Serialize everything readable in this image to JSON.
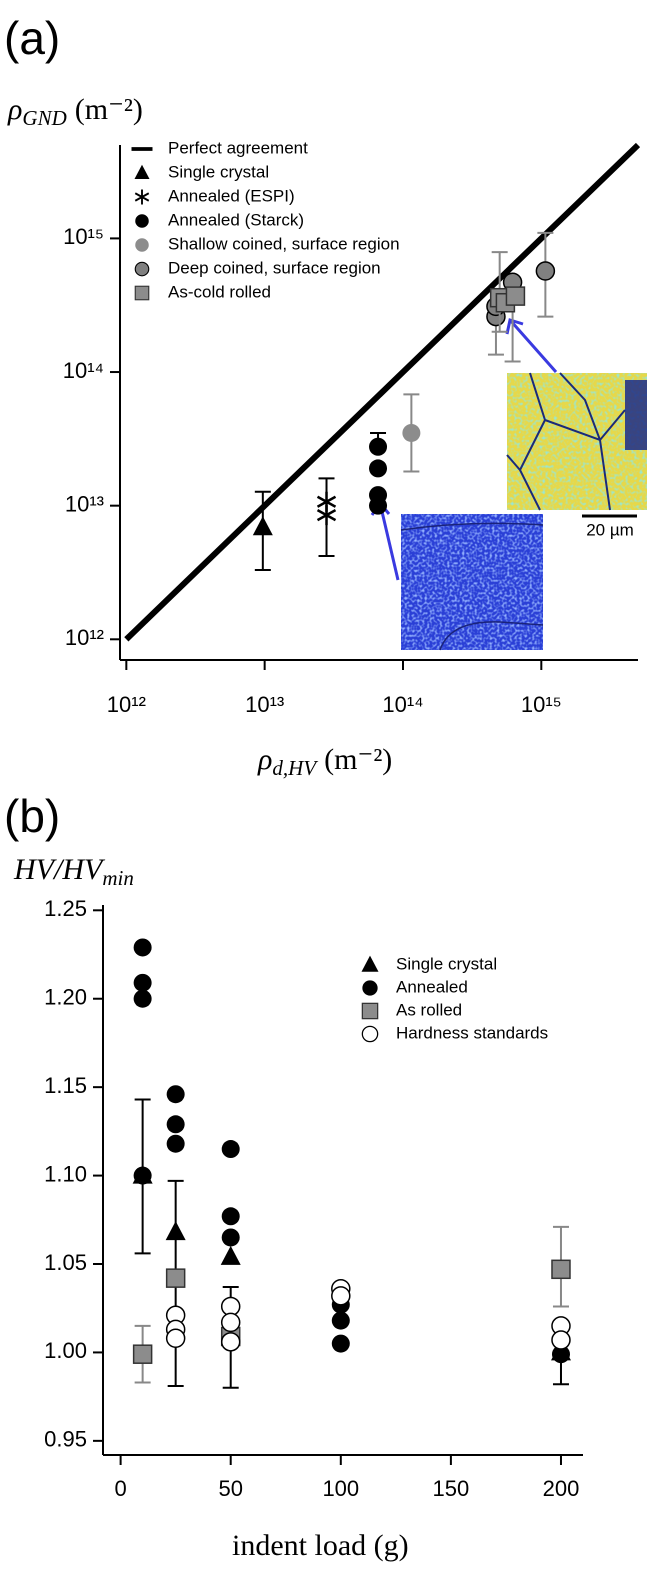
{
  "chart_data": [
    {
      "type": "scatter",
      "panel": "(a)",
      "xscale": "log",
      "yscale": "log",
      "y_label": {
        "symbol": "ρ",
        "sub": "GND",
        "unit": "(m⁻²)"
      },
      "x_label": {
        "symbol": "ρ",
        "sub": "d,HV",
        "unit": "(m⁻²)"
      },
      "xlim": [
        900000000000.0,
        5000000000000000.0
      ],
      "ylim": [
        700000000000.0,
        5000000000000000.0
      ],
      "xticks": [
        {
          "value": 1000000000000.0,
          "label": "10¹²"
        },
        {
          "value": 10000000000000.0,
          "label": "10¹³"
        },
        {
          "value": 100000000000000.0,
          "label": "10¹⁴"
        },
        {
          "value": 1000000000000000.0,
          "label": "10¹⁵"
        }
      ],
      "yticks": [
        {
          "value": 1000000000000.0,
          "label": "10¹²"
        },
        {
          "value": 10000000000000.0,
          "label": "10¹³"
        },
        {
          "value": 100000000000000.0,
          "label": "10¹⁴"
        },
        {
          "value": 1000000000000000.0,
          "label": "10¹⁵"
        }
      ],
      "annotation": "20 µm",
      "series": [
        {
          "name": "Perfect agreement",
          "marker": "line",
          "color": "#000000",
          "x": [
            1000000000000.0,
            5000000000000000.0
          ],
          "values": [
            1000000000000.0,
            5000000000000000.0
          ]
        },
        {
          "name": "Single crystal",
          "marker": "triangle",
          "color": "#000000",
          "x": [
            9700000000000.0
          ],
          "values": [
            6900000000000.0
          ],
          "ylow": [
            3300000000000.0
          ],
          "yhigh": [
            12700000000000.0
          ]
        },
        {
          "name": "Annealed (ESPI)",
          "marker": "asterisk",
          "color": "#000000",
          "x": [
            28000000000000.0,
            28000000000000.0
          ],
          "values": [
            10700000000000.0,
            8500000000000.0
          ],
          "ylow": [
            4200000000000.0,
            null
          ],
          "yhigh": [
            16000000000000.0,
            null
          ]
        },
        {
          "name": "Annealed (Starck)",
          "marker": "circle",
          "color": "#000000",
          "x": [
            66000000000000.0,
            66000000000000.0,
            66000000000000.0,
            66000000000000.0
          ],
          "values": [
            27600000000000.0,
            19000000000000.0,
            12000000000000.0,
            10000000000000.0
          ],
          "ylow": [
            null,
            null,
            null,
            null
          ],
          "yhigh": [
            35000000000000.0,
            null,
            null,
            null
          ]
        },
        {
          "name": "Shallow coined, surface region",
          "marker": "circle",
          "color": "#8c8c8c",
          "x": [
            115000000000000.0
          ],
          "values": [
            35000000000000.0
          ],
          "ylow": [
            18000000000000.0
          ],
          "yhigh": [
            68000000000000.0
          ]
        },
        {
          "name": "Deep coined, surface region",
          "marker": "circle-edge",
          "color": "#808080",
          "x": [
            470000000000000.0,
            470000000000000.0,
            620000000000000.0,
            1070000000000000.0
          ],
          "values": [
            260000000000000.0,
            310000000000000.0,
            470000000000000.0,
            570000000000000.0
          ],
          "ylow": [
            135000000000000.0,
            null,
            120000000000000.0,
            260000000000000.0
          ],
          "yhigh": [
            null,
            null,
            null,
            1100000000000000.0
          ]
        },
        {
          "name": "As-cold rolled",
          "marker": "square",
          "color": "#8c8c8c",
          "x": [
            500000000000000.0,
            550000000000000.0,
            650000000000000.0
          ],
          "values": [
            360000000000000.0,
            330000000000000.0,
            370000000000000.0
          ],
          "ylow": [
            200000000000000.0,
            null,
            null
          ],
          "yhigh": [
            790000000000000.0,
            null,
            null
          ]
        }
      ]
    },
    {
      "type": "scatter",
      "panel": "(b)",
      "y_label": {
        "symbol": "HV/HV",
        "sub": "min",
        "unit": ""
      },
      "x_label": {
        "symbol": "indent load (g)",
        "sub": "",
        "unit": ""
      },
      "xlim": [
        -8,
        210
      ],
      "ylim": [
        0.942,
        1.253
      ],
      "xticks": [
        0,
        50,
        100,
        150,
        200
      ],
      "yticks": [
        0.95,
        {
          "value": 1,
          "label": "1.00"
        },
        1.05,
        {
          "value": 1.1,
          "label": "1.10"
        },
        1.15,
        {
          "value": 1.2,
          "label": "1.20"
        },
        1.25
      ],
      "series": [
        {
          "name": "Single crystal",
          "marker": "triangle",
          "color": "#000000",
          "x": [
            10,
            25,
            50,
            200
          ],
          "values": [
            1.1,
            1.068,
            1.054,
            1.0
          ],
          "ylow": [
            1.056,
            0.981,
            0.98,
            0.982
          ],
          "yhigh": [
            1.143,
            1.097,
            1.037,
            null
          ]
        },
        {
          "name": "Annealed",
          "marker": "circle",
          "color": "#000000",
          "x": [
            10,
            10,
            10,
            10,
            25,
            25,
            25,
            50,
            50,
            50,
            100,
            100,
            100,
            100,
            200
          ],
          "values": [
            1.229,
            1.209,
            1.2,
            1.1,
            1.146,
            1.129,
            1.118,
            1.115,
            1.077,
            1.065,
            1.032,
            1.027,
            1.018,
            1.005,
            0.999
          ]
        },
        {
          "name": "As rolled",
          "marker": "square",
          "color": "#8c8c8c",
          "x": [
            10,
            25,
            50,
            200
          ],
          "values": [
            0.999,
            1.042,
            1.009,
            1.047
          ],
          "ylow": [
            0.983,
            null,
            null,
            1.026
          ],
          "yhigh": [
            1.015,
            null,
            null,
            1.071
          ]
        },
        {
          "name": "Hardness standards",
          "marker": "open-circle",
          "color": "#ffffff",
          "x": [
            25,
            25,
            25,
            50,
            50,
            50,
            100,
            100,
            200,
            200
          ],
          "values": [
            1.021,
            1.013,
            1.008,
            1.026,
            1.017,
            1.006,
            1.036,
            1.032,
            1.015,
            1.007
          ]
        }
      ]
    }
  ]
}
